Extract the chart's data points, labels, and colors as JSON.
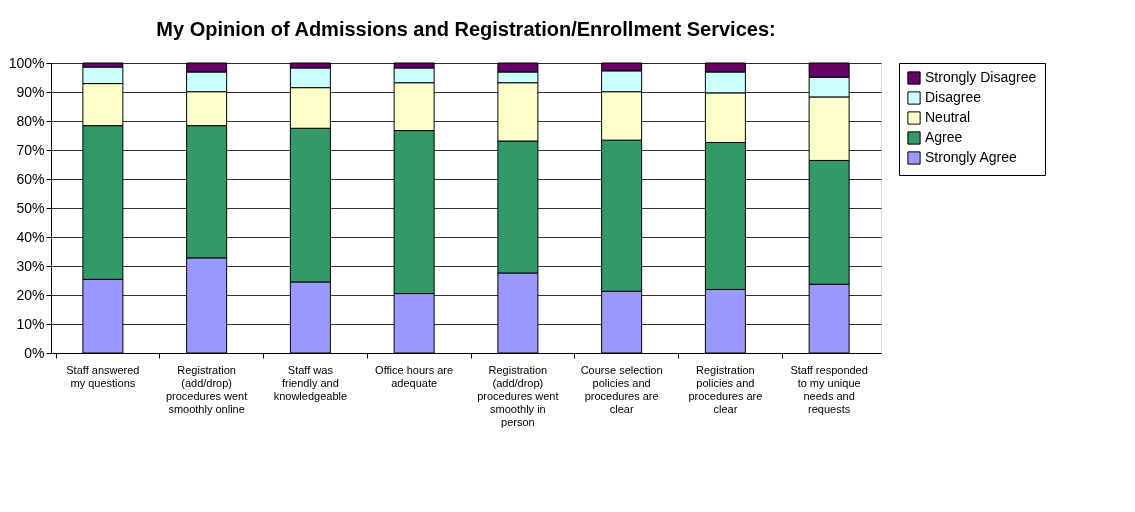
{
  "chart_data": {
    "type": "bar",
    "stacked": true,
    "title": "My Opinion of Admissions and Registration/Enrollment Services:",
    "categories": [
      "Staff answered my questions",
      "Registration (add/drop) procedures went smoothly online",
      "Staff was friendly and knowledgeable",
      "Office hours are adequate",
      "Registration (add/drop) procedures went smoothly in person",
      "Course selection policies and procedures are clear",
      "Registration policies and procedures are clear",
      "Staff responded to my unique needs and requests"
    ],
    "series": [
      {
        "name": "Strongly Agree",
        "color": "#9999ff",
        "values": [
          25.4,
          32.8,
          24.5,
          20.5,
          27.6,
          21.3,
          21.9,
          23.7
        ]
      },
      {
        "name": "Agree",
        "color": "#339966",
        "values": [
          53.0,
          45.6,
          53.0,
          56.2,
          45.5,
          52.1,
          50.7,
          42.7
        ]
      },
      {
        "name": "Neutral",
        "color": "#ffffcc",
        "values": [
          14.5,
          11.7,
          14.0,
          16.5,
          20.1,
          16.7,
          17.1,
          21.9
        ]
      },
      {
        "name": "Disagree",
        "color": "#ccffff",
        "values": [
          5.7,
          6.8,
          6.8,
          5.1,
          3.7,
          7.2,
          7.2,
          6.8
        ]
      },
      {
        "name": "Strongly Disagree",
        "color": "#660066",
        "values": [
          1.4,
          3.1,
          1.7,
          1.7,
          3.1,
          2.7,
          3.1,
          4.9
        ]
      }
    ],
    "ylim": [
      0,
      100
    ],
    "yticks": [
      {
        "value": 0,
        "label": "0%"
      },
      {
        "value": 10,
        "label": "10%"
      },
      {
        "value": 20,
        "label": "20%"
      },
      {
        "value": 30,
        "label": "30%"
      },
      {
        "value": 40,
        "label": "40%"
      },
      {
        "value": 50,
        "label": "50%"
      },
      {
        "value": 60,
        "label": "60%"
      },
      {
        "value": 70,
        "label": "70%"
      },
      {
        "value": 80,
        "label": "80%"
      },
      {
        "value": 90,
        "label": "90%"
      },
      {
        "value": 100,
        "label": "100%"
      }
    ],
    "grid": "y",
    "legend": "right"
  }
}
